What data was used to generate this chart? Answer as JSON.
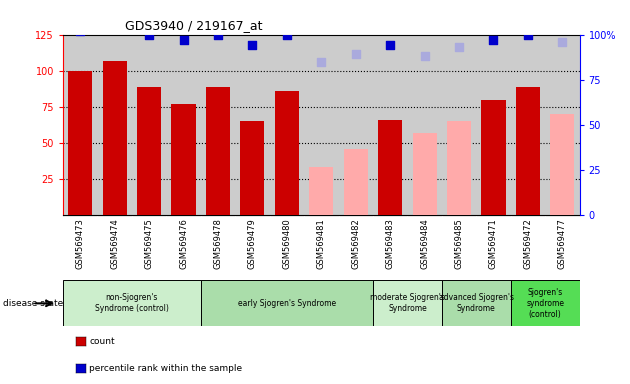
{
  "title": "GDS3940 / 219167_at",
  "samples": [
    "GSM569473",
    "GSM569474",
    "GSM569475",
    "GSM569476",
    "GSM569478",
    "GSM569479",
    "GSM569480",
    "GSM569481",
    "GSM569482",
    "GSM569483",
    "GSM569484",
    "GSM569485",
    "GSM569471",
    "GSM569472",
    "GSM569477"
  ],
  "count_values": [
    100,
    107,
    89,
    77,
    89,
    65,
    86,
    null,
    null,
    66,
    null,
    null,
    80,
    89,
    null
  ],
  "count_absent": [
    null,
    null,
    null,
    null,
    null,
    null,
    null,
    33,
    46,
    null,
    57,
    65,
    null,
    null,
    70
  ],
  "rank_values": [
    102,
    103,
    100,
    97,
    100,
    94,
    100,
    null,
    null,
    94,
    null,
    null,
    97,
    100,
    null
  ],
  "rank_absent": [
    null,
    null,
    null,
    null,
    null,
    null,
    null,
    85,
    89,
    null,
    88,
    93,
    null,
    null,
    96
  ],
  "groups": [
    {
      "label": "non-Sjogren's\nSyndrome (control)",
      "start": 0,
      "end": 4,
      "color": "#cceecc"
    },
    {
      "label": "early Sjogren's Syndrome",
      "start": 4,
      "end": 9,
      "color": "#aaddaa"
    },
    {
      "label": "moderate Sjogren's\nSyndrome",
      "start": 9,
      "end": 11,
      "color": "#cceecc"
    },
    {
      "label": "advanced Sjogren's\nSyndrome",
      "start": 11,
      "end": 13,
      "color": "#aaddaa"
    },
    {
      "label": "Sjogren's\nsyndrome\n(control)",
      "start": 13,
      "end": 15,
      "color": "#55dd55"
    }
  ],
  "bar_color_present": "#cc0000",
  "bar_color_absent": "#ffaaaa",
  "rank_color_present": "#0000cc",
  "rank_color_absent": "#aaaadd",
  "ylim_left": [
    0,
    125
  ],
  "ylim_right": [
    0,
    100
  ],
  "yticks_left": [
    25,
    50,
    75,
    100,
    125
  ],
  "yticks_right": [
    0,
    25,
    50,
    75,
    100
  ],
  "bg_color": "#cccccc",
  "xlab_bg": "#cccccc"
}
